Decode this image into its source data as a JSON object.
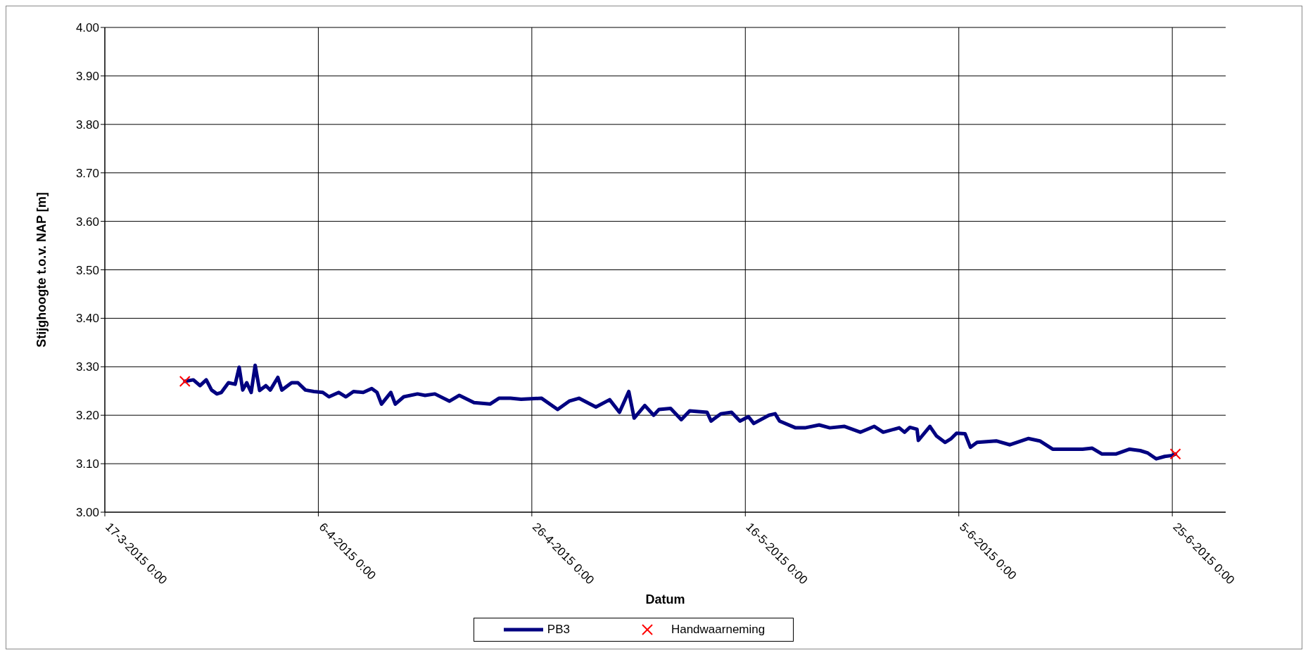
{
  "chart_data": {
    "type": "line",
    "xlabel": "Datum",
    "ylabel": "Stijghoogte t.o.v. NAP [m]",
    "xlim": [
      "2015-03-17",
      "2015-06-30"
    ],
    "xticks": [
      {
        "value": "2015-03-17",
        "label": "17-3-2015 0:00"
      },
      {
        "value": "2015-04-06",
        "label": "6-4-2015 0:00"
      },
      {
        "value": "2015-04-26",
        "label": "26-4-2015 0:00"
      },
      {
        "value": "2015-05-16",
        "label": "16-5-2015 0:00"
      },
      {
        "value": "2015-06-05",
        "label": "5-6-2015 0:00"
      },
      {
        "value": "2015-06-25",
        "label": "25-6-2015 0:00"
      }
    ],
    "ylim": [
      3,
      4
    ],
    "yticks": [
      {
        "value": 3,
        "label": "3.00"
      },
      {
        "value": 3.1,
        "label": "3.10"
      },
      {
        "value": 3.2,
        "label": "3.20"
      },
      {
        "value": 3.3,
        "label": "3.30"
      },
      {
        "value": 3.4,
        "label": "3.40"
      },
      {
        "value": 3.5,
        "label": "3.50"
      },
      {
        "value": 3.6,
        "label": "3.60"
      },
      {
        "value": 3.7,
        "label": "3.70"
      },
      {
        "value": 3.8,
        "label": "3.80"
      },
      {
        "value": 3.9,
        "label": "3.90"
      },
      {
        "value": 4,
        "label": "4.00"
      }
    ],
    "grid": true,
    "legend": "bottom",
    "marker": "none",
    "line_style": "solid",
    "series": [
      {
        "name": "PB3",
        "color": "#000080",
        "x": [
          "2015-03-24T12:00",
          "2015-03-25T07:00",
          "2015-03-25T22:00",
          "2015-03-26T12:00",
          "2015-03-27T00:00",
          "2015-03-27T12:00",
          "2015-03-27T22:00",
          "2015-03-28T14:00",
          "2015-03-29T05:00",
          "2015-03-29T14:00",
          "2015-03-29T22:00",
          "2015-03-30T07:00",
          "2015-03-30T17:00",
          "2015-03-31T02:00",
          "2015-03-31T12:00",
          "2015-04-01T02:00",
          "2015-04-01T12:00",
          "2015-04-02T05:00",
          "2015-04-02T14:00",
          "2015-04-03T12:00",
          "2015-04-04T02:00",
          "2015-04-04T19:00",
          "2015-04-05T14:00",
          "2015-04-06T10:00",
          "2015-04-07T00:00",
          "2015-04-07T22:00",
          "2015-04-08T14:00",
          "2015-04-09T07:00",
          "2015-04-10T05:00",
          "2015-04-11T00:00",
          "2015-04-11T12:00",
          "2015-04-11T22:00",
          "2015-04-12T19:00",
          "2015-04-13T05:00",
          "2015-04-14T00:00",
          "2015-04-15T07:00",
          "2015-04-16T00:00",
          "2015-04-16T22:00",
          "2015-04-18T07:00",
          "2015-04-19T05:00",
          "2015-04-20T14:00",
          "2015-04-22T02:00",
          "2015-04-22T22:00",
          "2015-04-24T00:00",
          "2015-04-25T00:00",
          "2015-04-26T22:00",
          "2015-04-28T10:00",
          "2015-04-29T12:00",
          "2015-04-30T10:00",
          "2015-05-02T00:00",
          "2015-05-03T07:00",
          "2015-05-04T05:00",
          "2015-05-05T02:00",
          "2015-05-05T14:00",
          "2015-05-06T14:00",
          "2015-05-07T10:00",
          "2015-05-07T22:00",
          "2015-05-09T00:00",
          "2015-05-10T00:00",
          "2015-05-10T19:00",
          "2015-05-12T10:00",
          "2015-05-12T19:00",
          "2015-05-13T17:00",
          "2015-05-14T17:00",
          "2015-05-15T12:00",
          "2015-05-16T07:00",
          "2015-05-16T19:00",
          "2015-05-18T05:00",
          "2015-05-18T19:00",
          "2015-05-19T05:00",
          "2015-05-20T17:00",
          "2015-05-21T14:00",
          "2015-05-22T22:00",
          "2015-05-23T22:00",
          "2015-05-25T07:00",
          "2015-05-26T19:00",
          "2015-05-28T02:00",
          "2015-05-28T22:00",
          "2015-05-30T10:00",
          "2015-05-30T22:00",
          "2015-05-31T10:00",
          "2015-06-01T02:00",
          "2015-06-01T05:00",
          "2015-06-02T07:00",
          "2015-06-02T22:00",
          "2015-06-03T17:00",
          "2015-06-04T07:00",
          "2015-06-04T19:00",
          "2015-06-05T14:00",
          "2015-06-06T02:00",
          "2015-06-06T17:00",
          "2015-06-08T12:00",
          "2015-06-09T19:00",
          "2015-06-11T12:00",
          "2015-06-12T14:00",
          "2015-06-13T19:00",
          "2015-06-15T02:00",
          "2015-06-16T14:00",
          "2015-06-17T12:00",
          "2015-06-18T10:00",
          "2015-06-19T17:00",
          "2015-06-21T00:00",
          "2015-06-22T00:00",
          "2015-06-22T17:00",
          "2015-06-23T12:00",
          "2015-06-24T07:00",
          "2015-06-25T00:00",
          "2015-06-25T07:00"
        ],
        "values": [
          3.27,
          3.273,
          3.261,
          3.273,
          3.252,
          3.244,
          3.247,
          3.267,
          3.264,
          3.299,
          3.252,
          3.267,
          3.247,
          3.303,
          3.251,
          3.261,
          3.252,
          3.278,
          3.252,
          3.267,
          3.267,
          3.252,
          3.249,
          3.247,
          3.238,
          3.247,
          3.238,
          3.249,
          3.247,
          3.255,
          3.247,
          3.223,
          3.247,
          3.223,
          3.238,
          3.244,
          3.241,
          3.244,
          3.229,
          3.241,
          3.226,
          3.223,
          3.235,
          3.235,
          3.233,
          3.235,
          3.212,
          3.229,
          3.235,
          3.217,
          3.232,
          3.206,
          3.249,
          3.194,
          3.22,
          3.2,
          3.212,
          3.214,
          3.191,
          3.209,
          3.206,
          3.188,
          3.203,
          3.206,
          3.188,
          3.197,
          3.183,
          3.2,
          3.203,
          3.188,
          3.174,
          3.174,
          3.18,
          3.174,
          3.177,
          3.165,
          3.177,
          3.165,
          3.174,
          3.165,
          3.175,
          3.171,
          3.148,
          3.177,
          3.157,
          3.144,
          3.152,
          3.163,
          3.162,
          3.134,
          3.144,
          3.147,
          3.139,
          3.152,
          3.147,
          3.13,
          3.13,
          3.13,
          3.132,
          3.12,
          3.12,
          3.13,
          3.127,
          3.122,
          3.11,
          3.115,
          3.117,
          3.12
        ]
      },
      {
        "name": "Handwaarneming",
        "type": "scatter",
        "color": "#ff0000",
        "marker": "cross",
        "x": [
          "2015-03-24T12:00",
          "2015-06-25T07:00"
        ],
        "values": [
          3.27,
          3.12
        ]
      }
    ]
  }
}
